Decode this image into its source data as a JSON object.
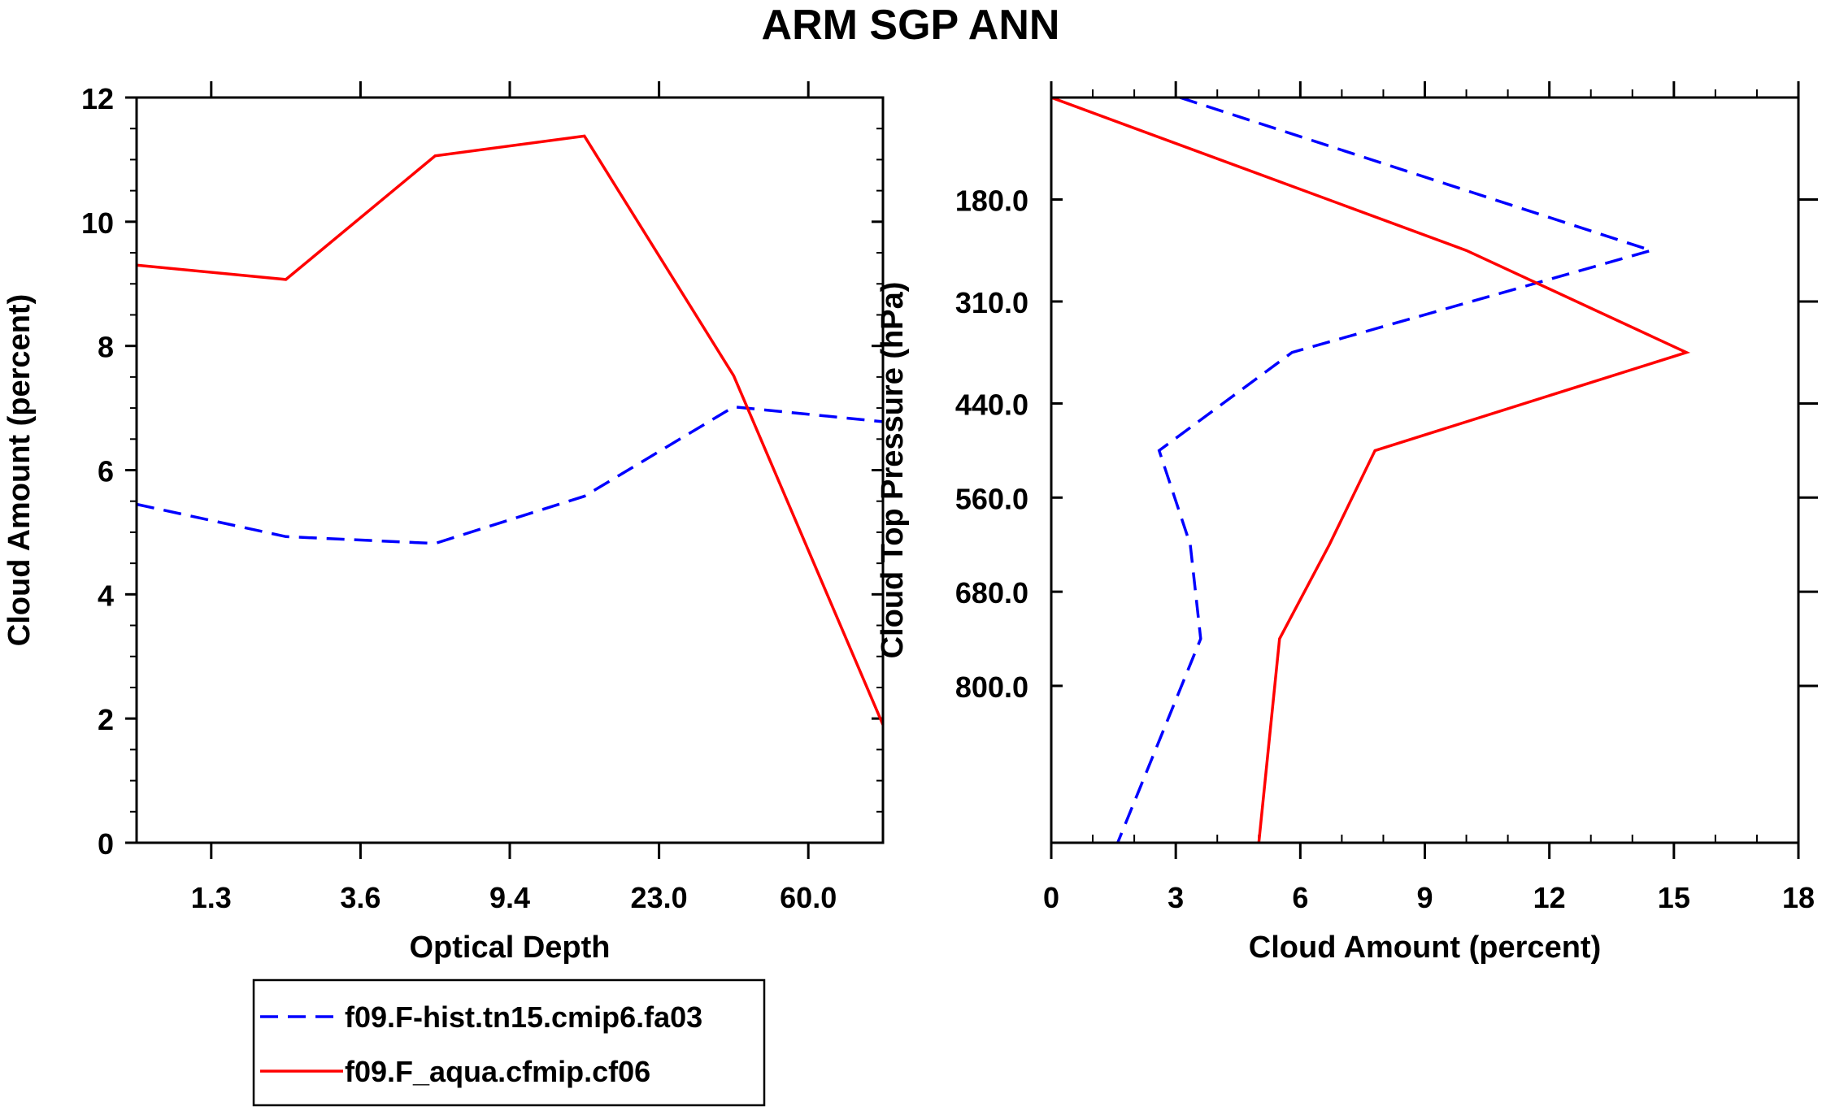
{
  "figure_title": "ARM SGP ANN",
  "legend": {
    "entries": [
      {
        "label": "f09.F-hist.tn15.cmip6.fa03",
        "color": "#0000ff",
        "style": "dashed"
      },
      {
        "label": "f09.F_aqua.cfmip.cf06",
        "color": "#ff0000",
        "style": "solid"
      }
    ]
  },
  "chart_data": [
    {
      "type": "line",
      "title": "",
      "xlabel": "Optical Depth",
      "ylabel": "Cloud Amount (percent)",
      "x": [
        0,
        1,
        2,
        3,
        4,
        5
      ],
      "xlim": [
        -0.5,
        4.5
      ],
      "x_tick_positions": [
        0,
        1,
        2,
        3,
        4
      ],
      "x_tick_labels": [
        "1.3",
        "3.6",
        "9.4",
        "23.0",
        "60.0"
      ],
      "ylim": [
        0,
        12
      ],
      "y_ticks": [
        0,
        2,
        4,
        6,
        8,
        10,
        12
      ],
      "y_tick_labels": [
        "0",
        "2",
        "4",
        "6",
        "8",
        "10",
        "12"
      ],
      "series": [
        {
          "name": "f09.F-hist.tn15.cmip6.fa03",
          "color": "#0000ff",
          "style": "dashed",
          "x": [
            -0.5,
            0.5,
            1.5,
            2.5,
            3.5,
            4.5
          ],
          "values": [
            5.45,
            4.93,
            4.82,
            5.58,
            7.02,
            6.78
          ]
        },
        {
          "name": "f09.F_aqua.cfmip.cf06",
          "color": "#ff0000",
          "style": "solid",
          "x": [
            -0.5,
            0.5,
            1.5,
            2.5,
            3.5,
            4.5
          ],
          "values": [
            9.3,
            9.07,
            11.06,
            11.38,
            7.52,
            1.9
          ]
        }
      ]
    },
    {
      "type": "line",
      "title": "",
      "xlabel": "Cloud Amount (percent)",
      "ylabel": "Cloud Top Pressure (hPa)",
      "xlim": [
        0,
        18
      ],
      "x_ticks": [
        0,
        3,
        6,
        9,
        12,
        15,
        18
      ],
      "x_tick_labels": [
        "0",
        "3",
        "6",
        "9",
        "12",
        "15",
        "18"
      ],
      "ylim": [
        50,
        1000
      ],
      "y_inverted": true,
      "y_ticks": [
        180,
        310,
        440,
        560,
        680,
        800
      ],
      "y_tick_labels": [
        "180.0",
        "310.0",
        "440.0",
        "560.0",
        "680.0",
        "800.0"
      ],
      "series": [
        {
          "name": "f09.F-hist.tn15.cmip6.fa03",
          "color": "#0000ff",
          "style": "dashed",
          "pressure": [
            50,
            245,
            375,
            500,
            620,
            740,
            1000
          ],
          "values": [
            3.1,
            14.45,
            5.8,
            2.6,
            3.35,
            3.6,
            1.6
          ]
        },
        {
          "name": "f09.F_aqua.cfmip.cf06",
          "color": "#ff0000",
          "style": "solid",
          "pressure": [
            50,
            245,
            375,
            500,
            620,
            740,
            1000
          ],
          "values": [
            0.0,
            10.0,
            15.3,
            7.8,
            6.7,
            5.5,
            5.0
          ]
        }
      ]
    }
  ]
}
